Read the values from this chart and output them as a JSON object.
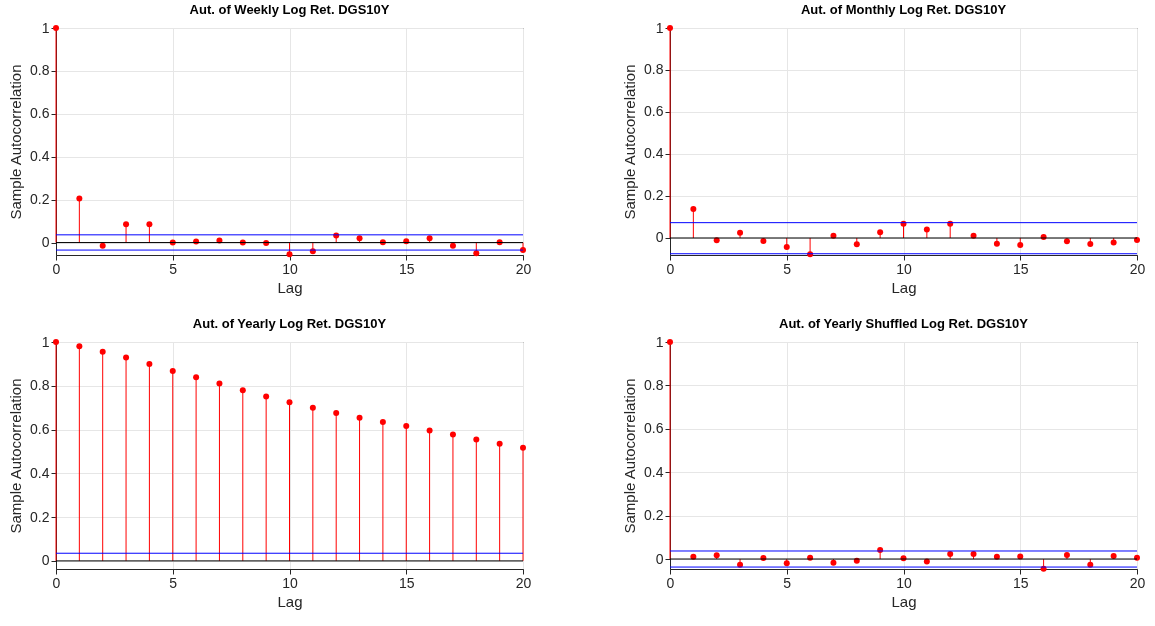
{
  "chart_data": [
    {
      "type": "lollipop",
      "title": "Aut. of Weekly Log Ret. DGS10Y",
      "xlabel": "Lag",
      "ylabel": "Sample Autocorrelation",
      "xlim": [
        0,
        20
      ],
      "xticks": [
        0,
        5,
        10,
        15,
        20
      ],
      "ylim": [
        -0.058,
        1
      ],
      "yticks": [
        0,
        0.2,
        0.4,
        0.6,
        0.8,
        1
      ],
      "grid": true,
      "marker": "circle",
      "series": [
        {
          "color": "#ff0000",
          "x": [
            0,
            1,
            2,
            3,
            4,
            5,
            6,
            7,
            8,
            9,
            10,
            11,
            12,
            13,
            14,
            15,
            16,
            17,
            18,
            19,
            20
          ],
          "values": [
            1,
            0.205,
            -0.015,
            0.085,
            0.085,
            0,
            0.005,
            0.01,
            0,
            -0.002,
            -0.055,
            -0.04,
            0.033,
            0.02,
            0.002,
            0.006,
            0.02,
            -0.015,
            -0.05,
            0.002,
            -0.035
          ]
        }
      ],
      "ref_lines": [
        {
          "axis": "y",
          "value": 0.036,
          "color": "#0000ff"
        },
        {
          "axis": "y",
          "value": -0.035,
          "color": "#0000ff"
        },
        {
          "axis": "y",
          "value": 0,
          "color": "#000000"
        }
      ]
    },
    {
      "type": "lollipop",
      "title": "Aut. of Monthly Log Ret. DGS10Y",
      "xlabel": "Lag",
      "ylabel": "Sample Autocorrelation",
      "xlim": [
        0,
        20
      ],
      "xticks": [
        0,
        5,
        10,
        15,
        20
      ],
      "ylim": [
        -0.081,
        1
      ],
      "yticks": [
        0,
        0.2,
        0.4,
        0.6,
        0.8,
        1
      ],
      "grid": true,
      "marker": "circle",
      "series": [
        {
          "color": "#ff0000",
          "x": [
            0,
            1,
            2,
            3,
            4,
            5,
            6,
            7,
            8,
            9,
            10,
            11,
            12,
            13,
            14,
            15,
            16,
            17,
            18,
            19,
            20
          ],
          "values": [
            1,
            0.138,
            -0.011,
            0.025,
            -0.014,
            -0.043,
            -0.078,
            0.011,
            -0.03,
            0.027,
            0.068,
            0.041,
            0.068,
            0.011,
            -0.027,
            -0.033,
            0.005,
            -0.016,
            -0.029,
            -0.021,
            -0.01
          ]
        }
      ],
      "ref_lines": [
        {
          "axis": "y",
          "value": 0.073,
          "color": "#0000ff"
        },
        {
          "axis": "y",
          "value": -0.075,
          "color": "#0000ff"
        },
        {
          "axis": "y",
          "value": 0,
          "color": "#000000"
        }
      ]
    },
    {
      "type": "lollipop",
      "title": "Aut. of Yearly Log Ret. DGS10Y",
      "xlabel": "Lag",
      "ylabel": "Sample Autocorrelation",
      "xlim": [
        0,
        20
      ],
      "xticks": [
        0,
        5,
        10,
        15,
        20
      ],
      "ylim": [
        -0.037,
        1
      ],
      "yticks": [
        0,
        0.2,
        0.4,
        0.6,
        0.8,
        1
      ],
      "grid": true,
      "marker": "circle",
      "series": [
        {
          "color": "#ff0000",
          "x": [
            0,
            1,
            2,
            3,
            4,
            5,
            6,
            7,
            8,
            9,
            10,
            11,
            12,
            13,
            14,
            15,
            16,
            17,
            18,
            19,
            20
          ],
          "values": [
            1,
            0.981,
            0.955,
            0.929,
            0.9,
            0.868,
            0.839,
            0.81,
            0.78,
            0.751,
            0.725,
            0.7,
            0.676,
            0.654,
            0.635,
            0.616,
            0.596,
            0.577,
            0.555,
            0.535,
            0.517
          ]
        }
      ],
      "ref_lines": [
        {
          "axis": "y",
          "value": 0.035,
          "color": "#0000ff"
        },
        {
          "axis": "y",
          "value": 0,
          "color": "#000000"
        }
      ]
    },
    {
      "type": "lollipop",
      "title": "Aut. of Yearly Shuffled Log Ret. DGS10Y",
      "xlabel": "Lag",
      "ylabel": "Sample Autocorrelation",
      "xlim": [
        0,
        20
      ],
      "xticks": [
        0,
        5,
        10,
        15,
        20
      ],
      "ylim": [
        -0.046,
        1
      ],
      "yticks": [
        0,
        0.2,
        0.4,
        0.6,
        0.8,
        1
      ],
      "grid": true,
      "marker": "circle",
      "series": [
        {
          "color": "#ff0000",
          "x": [
            0,
            1,
            2,
            3,
            4,
            5,
            6,
            7,
            8,
            9,
            10,
            11,
            12,
            13,
            14,
            15,
            16,
            17,
            18,
            19,
            20
          ],
          "values": [
            1,
            0.011,
            0.017,
            -0.026,
            0.005,
            -0.02,
            0.006,
            -0.017,
            -0.008,
            0.042,
            0.003,
            -0.012,
            0.023,
            0.023,
            0.011,
            0.012,
            -0.045,
            0.018,
            -0.026,
            0.014,
            0.006
          ]
        }
      ],
      "ref_lines": [
        {
          "axis": "y",
          "value": 0.037,
          "color": "#0000ff"
        },
        {
          "axis": "y",
          "value": -0.037,
          "color": "#0000ff"
        },
        {
          "axis": "y",
          "value": 0,
          "color": "#000000"
        }
      ]
    }
  ]
}
